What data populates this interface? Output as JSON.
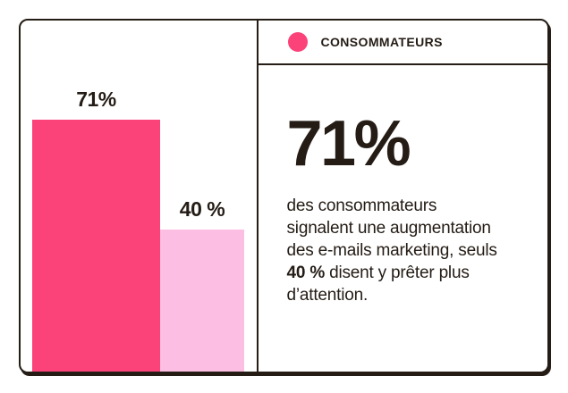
{
  "chart_data": {
    "type": "bar",
    "series_name": "CONSOMMATEURS",
    "bars": [
      {
        "label": "71%",
        "value": 71,
        "color": "#FB4379"
      },
      {
        "label": "40 %",
        "value": 40,
        "color": "#FDBEE3"
      }
    ],
    "ylim": [
      0,
      100
    ],
    "unit": "%",
    "grid": false,
    "axes_visible": false,
    "title": ""
  },
  "legend": {
    "label": "CONSOMMATEURS",
    "swatch_color": "#FB4379"
  },
  "stat": {
    "headline": "71%",
    "line1": "des consommateurs",
    "line2": "signalent une augmentation",
    "line3": "des e-mails marketing, seuls",
    "line4_bold": "40 %",
    "line4_rest": " disent y prêter plus",
    "line5": "d’attention."
  },
  "colors": {
    "ink": "#241C15",
    "card_background": "#FFFFFF",
    "page_background": "#FFFFFF",
    "primary_pink": "#FB4379",
    "light_pink": "#FDBEE3"
  }
}
